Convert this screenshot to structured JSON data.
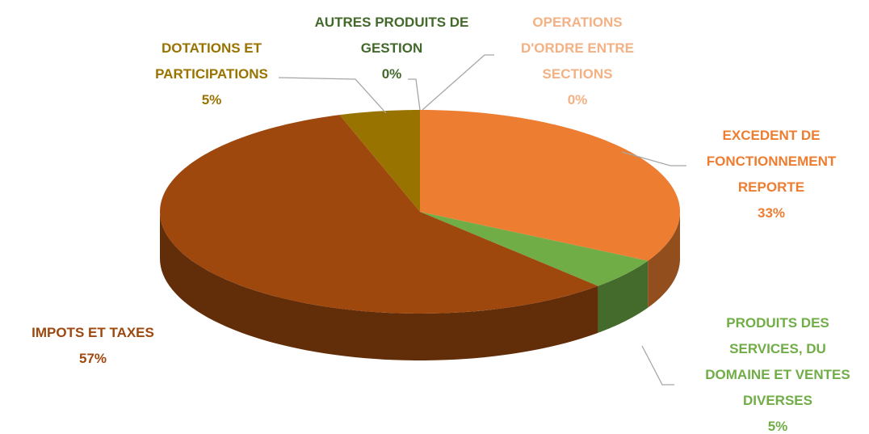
{
  "chart_data": {
    "type": "pie",
    "view": "3d",
    "categories": [
      "OPERATIONS D'ORDRE ENTRE SECTIONS",
      "EXCEDENT DE FONCTIONNEMENT REPORTE",
      "PRODUITS DES SERVICES, DU DOMAINE ET VENTES DIVERSES",
      "IMPOTS ET TAXES",
      "DOTATIONS ET PARTICIPATIONS",
      "AUTRES PRODUITS DE GESTION"
    ],
    "values": [
      0,
      33,
      5,
      57,
      5,
      0
    ],
    "value_labels": [
      "0%",
      "33%",
      "5%",
      "57%",
      "5%",
      "0%"
    ],
    "colors": [
      "#F4B183",
      "#ED7D31",
      "#70AD47",
      "#9E480E",
      "#997300",
      "#43682B"
    ]
  }
}
